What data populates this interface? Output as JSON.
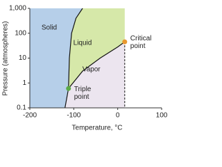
{
  "chart_data": {
    "type": "phase",
    "x_label": "Temperature, °C",
    "y_label": "Pressure (atmospheres)",
    "xlim": [
      -200,
      100
    ],
    "xticks": [
      -200,
      -100,
      0,
      100
    ],
    "ylim": [
      0.1,
      1000
    ],
    "yticks": [
      0.1,
      1,
      10,
      100,
      {
        "value": 1000,
        "label": "1,000"
      }
    ],
    "y_scale": "log",
    "boundaries": [
      {
        "x": [
          -120,
          -112
        ],
        "y": [
          0.1,
          0.6
        ]
      },
      {
        "x": [
          -112,
          -110,
          -105,
          -95,
          -80
        ],
        "y": [
          0.6,
          10,
          100,
          400,
          1000
        ]
      },
      {
        "x": [
          -112,
          -80,
          -40,
          0,
          16
        ],
        "y": [
          0.6,
          3,
          10,
          28,
          45
        ]
      }
    ],
    "regions": [
      {
        "label": "Solid",
        "color": "#b6cfe9"
      },
      {
        "label": "Liquid",
        "color": "#d6e8a9"
      },
      {
        "label": "Vapor",
        "color": "#ece5ef"
      }
    ],
    "points": [
      {
        "label": "Triple point",
        "x": -112,
        "y": 0.6,
        "color": "#5bab47"
      },
      {
        "label": "Critical point",
        "x": 16,
        "y": 45,
        "color": "#e8982f"
      }
    ]
  }
}
